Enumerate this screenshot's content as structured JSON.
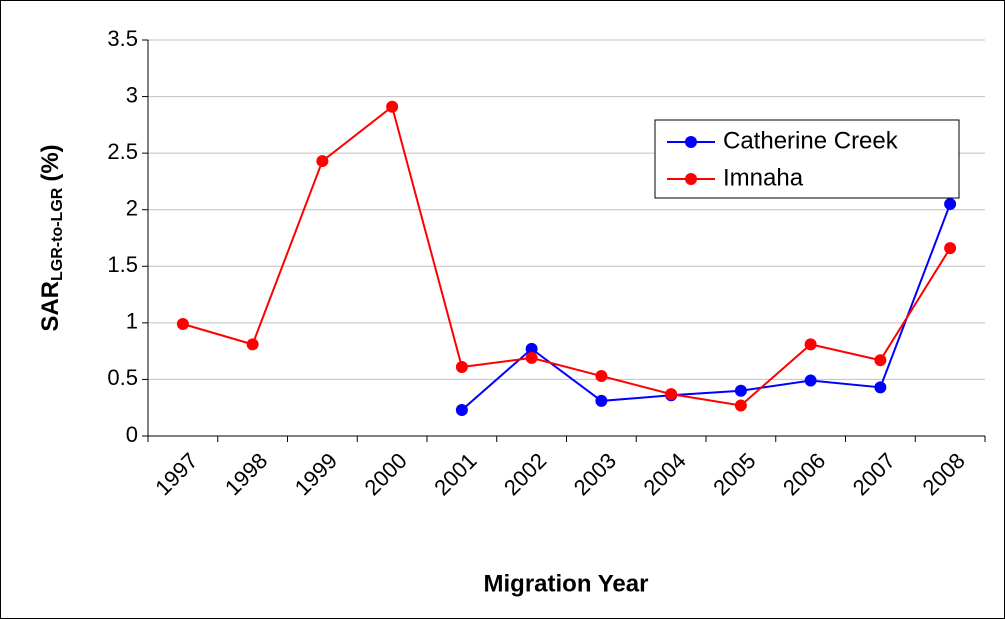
{
  "chart_data": {
    "type": "line",
    "ylabel": {
      "main": "SAR",
      "sub": "LGR-to-LGR",
      "unit": "(%)"
    },
    "xlabel": "Migration Year",
    "categories": [
      "1997",
      "1998",
      "1999",
      "2000",
      "2001",
      "2002",
      "2003",
      "2004",
      "2005",
      "2006",
      "2007",
      "2008"
    ],
    "series": [
      {
        "name": "Catherine Creek",
        "color": "#0000ff",
        "values": [
          null,
          null,
          null,
          null,
          0.23,
          0.77,
          0.31,
          0.36,
          0.4,
          0.49,
          0.43,
          2.05
        ]
      },
      {
        "name": "Imnaha",
        "color": "#ff0000",
        "values": [
          0.99,
          0.81,
          2.43,
          2.91,
          0.61,
          0.69,
          0.53,
          0.37,
          0.27,
          0.81,
          0.67,
          1.66
        ]
      }
    ],
    "ylim": [
      0,
      3.5
    ],
    "yticks": [
      0,
      0.5,
      1,
      1.5,
      2,
      2.5,
      3,
      3.5
    ],
    "grid": true
  }
}
